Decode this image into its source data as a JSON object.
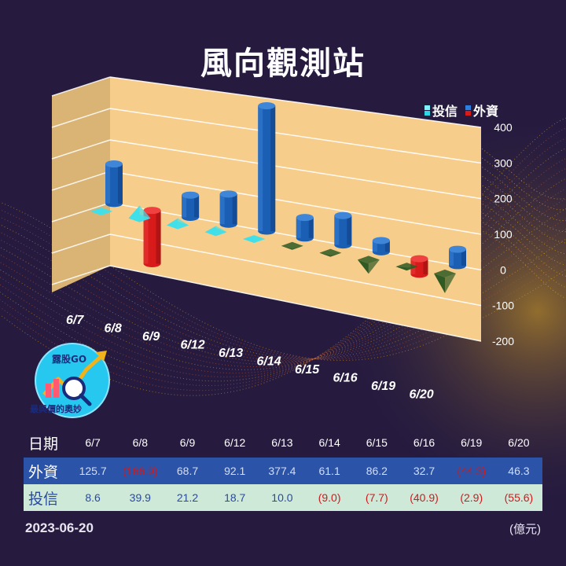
{
  "title": "風向觀測站",
  "logo": {
    "top_text": "露股GO",
    "bottom_text": "最與價的奧妙"
  },
  "legend": [
    {
      "label": "投信",
      "color": "#2fd6e6"
    },
    {
      "label": "外資",
      "color": "#d81a1a"
    }
  ],
  "colors": {
    "foreign_pos": "#1a5fb4",
    "foreign_neg": "#d81a1a",
    "trust_pos": "#3fe0ea",
    "trust_neg": "#2f5a23",
    "wall": "#f7cd8b"
  },
  "table": {
    "date_label": "日期",
    "foreign_label": "外資",
    "trust_label": "投信",
    "foreign_text": [
      "125.7",
      "(166.9)",
      "68.7",
      "92.1",
      "377.4",
      "61.1",
      "86.2",
      "32.7",
      "(44.3)",
      "46.3"
    ],
    "trust_text": [
      "8.6",
      "39.9",
      "21.2",
      "18.7",
      "10.0",
      "(9.0)",
      "(7.7)",
      "(40.9)",
      "(2.9)",
      "(55.6)"
    ]
  },
  "footer": {
    "date": "2023-06-20",
    "unit": "(億元)"
  },
  "chart_data": {
    "type": "bar",
    "title": "風向觀測站",
    "categories": [
      "6/7",
      "6/8",
      "6/9",
      "6/12",
      "6/13",
      "6/14",
      "6/15",
      "6/16",
      "6/19",
      "6/20"
    ],
    "series": [
      {
        "name": "投信",
        "values": [
          8.6,
          39.9,
          21.2,
          18.7,
          10.0,
          -9.0,
          -7.7,
          -40.9,
          -2.9,
          -55.6
        ]
      },
      {
        "name": "外資",
        "values": [
          125.7,
          -166.9,
          68.7,
          92.1,
          377.4,
          61.1,
          86.2,
          32.7,
          -44.3,
          46.3
        ]
      }
    ],
    "y_ticks": [
      "400",
      "300",
      "200",
      "100",
      "0",
      "-100",
      "-200"
    ],
    "ylim": [
      -200,
      400
    ],
    "legend_position": "top-right",
    "grid": true
  }
}
